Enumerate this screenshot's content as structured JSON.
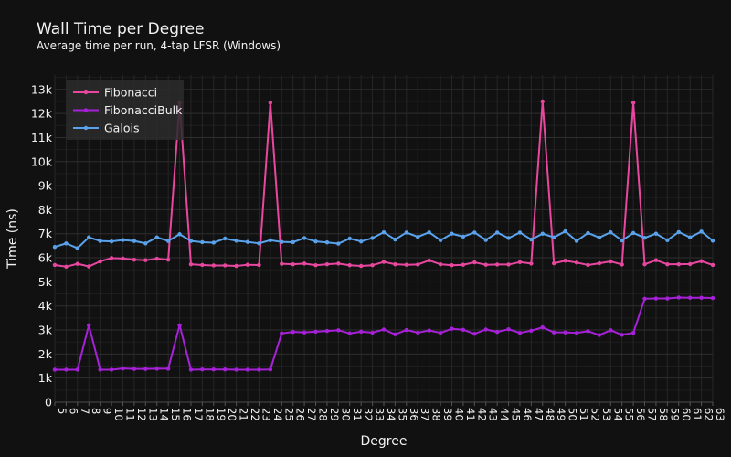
{
  "chart_data": {
    "type": "line",
    "title": "Wall Time per Degree",
    "subtitle": "Average time per run, 4-tap LFSR (Windows)",
    "xlabel": "Degree",
    "ylabel": "Time (ns)",
    "x": [
      5,
      6,
      7,
      8,
      9,
      10,
      11,
      12,
      13,
      14,
      15,
      16,
      17,
      18,
      19,
      20,
      21,
      22,
      23,
      24,
      25,
      26,
      27,
      28,
      29,
      30,
      31,
      32,
      33,
      34,
      35,
      36,
      37,
      38,
      39,
      40,
      41,
      42,
      43,
      44,
      45,
      46,
      47,
      48,
      49,
      50,
      51,
      52,
      53,
      54,
      55,
      56,
      57,
      58,
      59,
      60,
      61,
      62,
      63
    ],
    "xticks": [
      "5",
      "6",
      "7",
      "8",
      "9",
      "10",
      "11",
      "12",
      "13",
      "14",
      "15",
      "16",
      "17",
      "18",
      "19",
      "20",
      "21",
      "22",
      "23",
      "24",
      "25",
      "26",
      "27",
      "28",
      "29",
      "30",
      "31",
      "32",
      "33",
      "34",
      "35",
      "36",
      "37",
      "38",
      "39",
      "40",
      "41",
      "42",
      "43",
      "44",
      "45",
      "46",
      "47",
      "48",
      "49",
      "50",
      "51",
      "52",
      "53",
      "54",
      "55",
      "56",
      "57",
      "58",
      "59",
      "60",
      "61",
      "62",
      "63"
    ],
    "xlim": [
      5,
      63
    ],
    "ylim": [
      0,
      13600
    ],
    "yticks": [
      0,
      1000,
      2000,
      3000,
      4000,
      5000,
      6000,
      7000,
      8000,
      9000,
      10000,
      11000,
      12000,
      13000
    ],
    "ytick_labels": [
      "0",
      "1k",
      "2k",
      "3k",
      "4k",
      "5k",
      "6k",
      "7k",
      "8k",
      "9k",
      "10k",
      "11k",
      "12k",
      "13k"
    ],
    "grid": true,
    "legend": "top-left",
    "series": [
      {
        "name": "Fibonacci",
        "color": "#e8479f",
        "values": [
          5700,
          5630,
          5750,
          5640,
          5850,
          5990,
          5970,
          5920,
          5900,
          5960,
          5920,
          12450,
          5730,
          5700,
          5680,
          5680,
          5660,
          5710,
          5700,
          12450,
          5750,
          5730,
          5760,
          5690,
          5730,
          5760,
          5690,
          5660,
          5690,
          5830,
          5730,
          5710,
          5720,
          5890,
          5730,
          5690,
          5710,
          5810,
          5710,
          5720,
          5720,
          5820,
          5760,
          12500,
          5770,
          5880,
          5800,
          5700,
          5770,
          5850,
          5720,
          12450,
          5730,
          5900,
          5730,
          5730,
          5740,
          5860,
          5700
        ]
      },
      {
        "name": "FibonacciBulk",
        "color": "#a621d8",
        "values": [
          1350,
          1350,
          1350,
          3200,
          1350,
          1350,
          1400,
          1380,
          1380,
          1390,
          1390,
          3200,
          1350,
          1360,
          1360,
          1360,
          1350,
          1350,
          1350,
          1360,
          2860,
          2920,
          2900,
          2930,
          2960,
          2990,
          2860,
          2930,
          2890,
          3020,
          2820,
          3000,
          2890,
          2980,
          2880,
          3050,
          3010,
          2840,
          3020,
          2920,
          3030,
          2880,
          2970,
          3110,
          2900,
          2900,
          2880,
          2950,
          2790,
          2990,
          2800,
          2880,
          4300,
          4310,
          4310,
          4350,
          4340,
          4340,
          4330
        ]
      },
      {
        "name": "Galois",
        "color": "#5aa3ec",
        "values": [
          6450,
          6600,
          6400,
          6850,
          6700,
          6680,
          6740,
          6700,
          6600,
          6850,
          6700,
          6980,
          6700,
          6650,
          6630,
          6800,
          6710,
          6660,
          6600,
          6730,
          6660,
          6650,
          6820,
          6680,
          6640,
          6590,
          6800,
          6680,
          6820,
          7060,
          6760,
          7050,
          6870,
          7060,
          6730,
          7000,
          6880,
          7050,
          6740,
          7050,
          6820,
          7050,
          6760,
          7000,
          6850,
          7100,
          6700,
          7030,
          6840,
          7060,
          6720,
          7030,
          6830,
          7000,
          6730,
          7070,
          6850,
          7090,
          6710
        ]
      }
    ]
  }
}
